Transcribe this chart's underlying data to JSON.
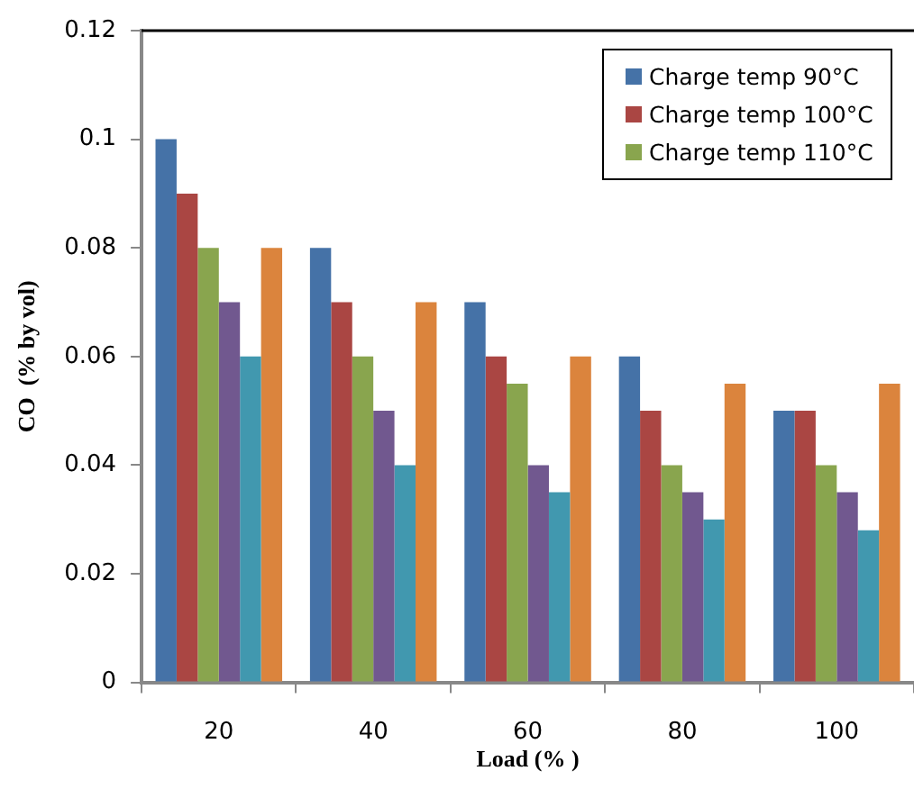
{
  "chart_data": {
    "type": "bar",
    "xlabel": "Load (% )",
    "ylabel": "CO  (% by vol)",
    "categories": [
      "20",
      "40",
      "60",
      "80",
      "100"
    ],
    "series": [
      {
        "name": "Charge temp 90°C",
        "color": "#4572a7",
        "values": [
          0.1,
          0.08,
          0.07,
          0.06,
          0.05
        ]
      },
      {
        "name": "Charge temp 100°C",
        "color": "#aa4643",
        "values": [
          0.09,
          0.07,
          0.06,
          0.05,
          0.05
        ]
      },
      {
        "name": "Charge temp 110°C",
        "color": "#89a54e",
        "values": [
          0.08,
          0.06,
          0.055,
          0.04,
          0.04
        ]
      },
      {
        "color": "#71588f",
        "values": [
          0.07,
          0.05,
          0.04,
          0.035,
          0.035
        ]
      },
      {
        "color": "#4198af",
        "values": [
          0.06,
          0.04,
          0.035,
          0.03,
          0.028
        ]
      },
      {
        "color": "#db843d",
        "values": [
          0.08,
          0.07,
          0.06,
          0.055,
          0.055
        ]
      }
    ],
    "ylim": [
      0,
      0.12
    ],
    "yticks": [
      0,
      0.02,
      0.04,
      0.06,
      0.08,
      0.1,
      0.12
    ],
    "grid": false,
    "legend": "top right"
  }
}
